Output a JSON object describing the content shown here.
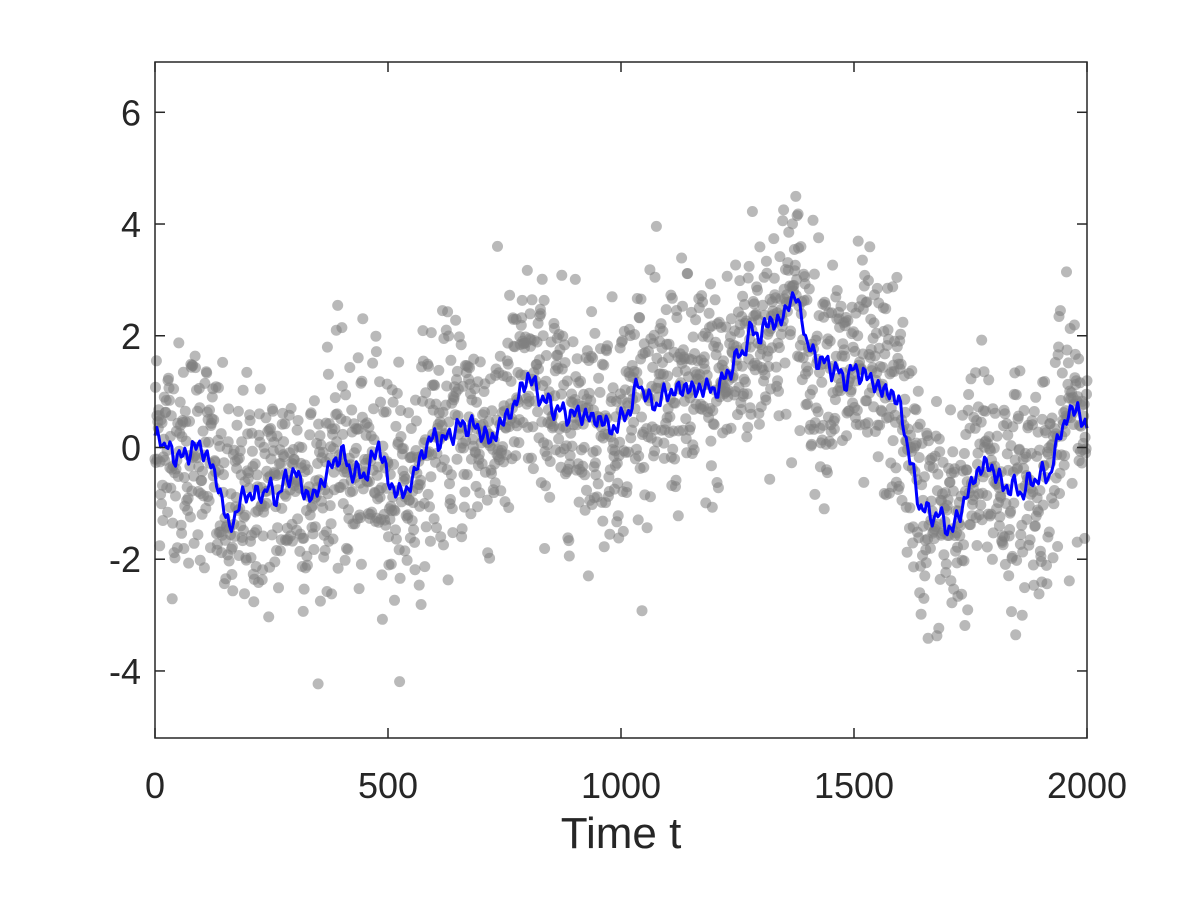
{
  "chart_data": {
    "type": "scatter",
    "xlabel": "Time t",
    "ylabel": "",
    "xlim": [
      0,
      2000
    ],
    "ylim": [
      -5.2,
      6.9
    ],
    "xticks": [
      0,
      500,
      1000,
      1500,
      2000
    ],
    "yticks": [
      -4,
      -2,
      0,
      2,
      4,
      6
    ],
    "xtick_labels": [
      "0",
      "500",
      "1000",
      "1500",
      "2000"
    ],
    "ytick_labels": [
      "-4",
      "-2",
      "0",
      "2",
      "4",
      "6"
    ],
    "grid": false,
    "legend": "none",
    "colors": {
      "line": "#0000ff",
      "points": "#808080"
    },
    "series": [
      {
        "kind": "line",
        "x": [
          0,
          10,
          20,
          40,
          60,
          80,
          100,
          120,
          140,
          160,
          180,
          200,
          220,
          240,
          260,
          280,
          300,
          320,
          340,
          360,
          380,
          400,
          420,
          440,
          460,
          480,
          500,
          520,
          540,
          560,
          580,
          600,
          620,
          640,
          660,
          680,
          700,
          720,
          740,
          760,
          780,
          800,
          820,
          840,
          860,
          880,
          900,
          920,
          940,
          960,
          980,
          1000,
          1020,
          1040,
          1060,
          1080,
          1100,
          1120,
          1140,
          1160,
          1180,
          1200,
          1220,
          1240,
          1260,
          1280,
          1300,
          1320,
          1340,
          1360,
          1375,
          1390,
          1400,
          1420,
          1440,
          1460,
          1480,
          1500,
          1520,
          1540,
          1560,
          1580,
          1600,
          1620,
          1640,
          1660,
          1680,
          1700,
          1710,
          1720,
          1740,
          1760,
          1780,
          1800,
          1820,
          1840,
          1860,
          1880,
          1900,
          1920,
          1940,
          1960,
          1980,
          1990,
          2000
        ],
        "y": [
          0.1,
          0.3,
          0.0,
          -0.1,
          -0.2,
          0.0,
          0.0,
          -0.3,
          -0.8,
          -1.5,
          -1.0,
          -0.8,
          -0.9,
          -0.7,
          -0.9,
          -0.6,
          -0.4,
          -0.8,
          -0.9,
          -0.6,
          -0.3,
          -0.1,
          -0.4,
          -0.5,
          -0.4,
          0.1,
          -0.6,
          -0.8,
          -0.8,
          -0.4,
          0.0,
          0.2,
          0.1,
          0.3,
          0.4,
          0.4,
          0.3,
          0.1,
          0.4,
          0.6,
          0.9,
          1.3,
          1.0,
          0.8,
          0.7,
          0.6,
          0.6,
          0.6,
          0.5,
          0.5,
          0.3,
          0.5,
          0.7,
          1.2,
          0.8,
          0.8,
          1.0,
          1.0,
          1.1,
          1.0,
          1.1,
          1.0,
          1.2,
          1.5,
          1.7,
          2.1,
          2.0,
          2.3,
          2.2,
          2.6,
          2.7,
          2.3,
          1.8,
          1.6,
          1.5,
          1.4,
          1.2,
          1.4,
          1.3,
          1.2,
          1.0,
          1.0,
          0.7,
          -0.2,
          -1.0,
          -1.2,
          -1.2,
          -1.4,
          -1.5,
          -1.3,
          -0.9,
          -0.5,
          -0.3,
          -0.4,
          -0.7,
          -0.7,
          -0.8,
          -0.6,
          -0.5,
          -0.5,
          0.2,
          0.6,
          0.7,
          0.5,
          0.3
        ]
      }
    ]
  }
}
